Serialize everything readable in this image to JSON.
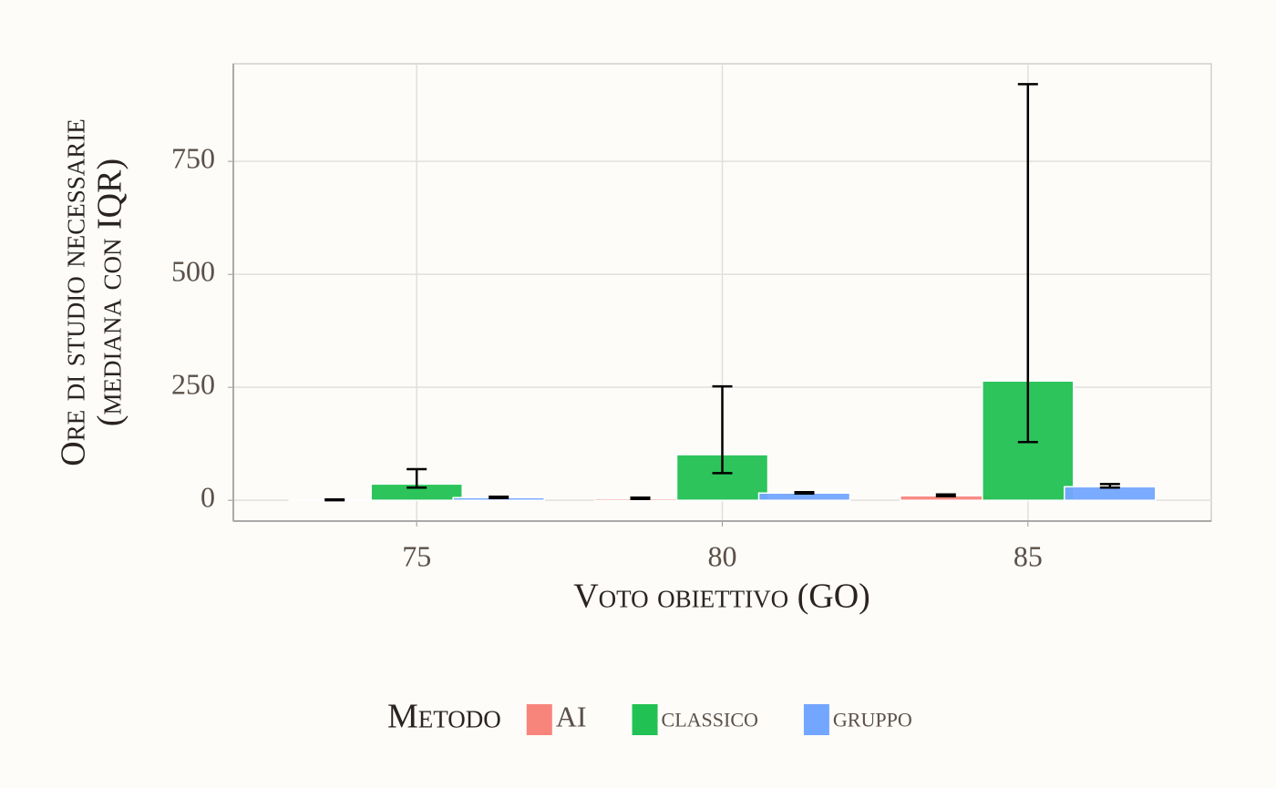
{
  "chart_data": {
    "type": "bar",
    "x_label": "Voto obiettivo (GO)",
    "y_label": [
      "Ore di studio necessarie",
      "(mediana con IQR)"
    ],
    "categories": [
      "75",
      "80",
      "85"
    ],
    "legend_title": "Metodo",
    "series": [
      {
        "name": "AI",
        "color": "#f8857c",
        "values": [
          1,
          4,
          10
        ],
        "low": [
          0,
          3,
          9
        ],
        "high": [
          2,
          6,
          13
        ]
      },
      {
        "name": "classico",
        "color": "#22c153",
        "values": [
          36,
          101,
          264
        ],
        "low": [
          28,
          60,
          129
        ],
        "high": [
          69,
          252,
          921
        ]
      },
      {
        "name": "gruppo",
        "color": "#73a6ff",
        "values": [
          6,
          16,
          30
        ],
        "low": [
          5,
          15,
          28
        ],
        "high": [
          8,
          18,
          36
        ]
      }
    ],
    "ylim": [
      -46,
      966
    ],
    "yticks": [
      0,
      250,
      500,
      750
    ],
    "grid": true,
    "legend_position": "bottom"
  }
}
